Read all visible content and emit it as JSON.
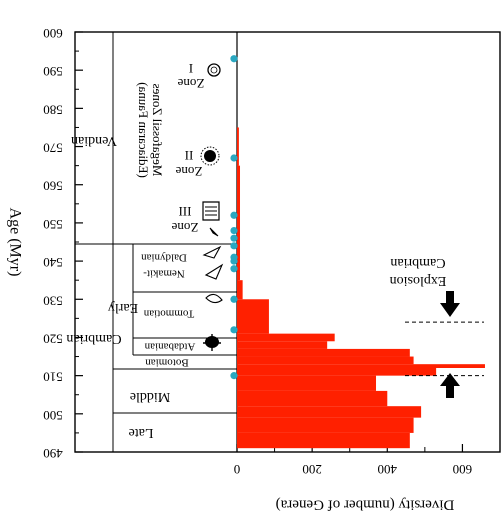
{
  "chart_data": {
    "type": "bar",
    "orientation": "horizontal",
    "mirrored": true,
    "ylabel": "Age (Myr)",
    "xlabel": "Diversity (number of Genera)",
    "ylim": [
      490,
      600
    ],
    "xlim": [
      0,
      700
    ],
    "yticks": [
      "490",
      "500",
      "510",
      "520",
      "530",
      "540",
      "550",
      "560",
      "570",
      "580",
      "590",
      "600"
    ],
    "xticks": [
      "0",
      "200",
      "400",
      "600"
    ],
    "bar_color": "#ff2000",
    "marker_color": "#2aa7c0",
    "bars": [
      {
        "y0": 491,
        "y1": 495,
        "value": 460
      },
      {
        "y0": 495,
        "y1": 499,
        "value": 470
      },
      {
        "y0": 499,
        "y1": 502,
        "value": 490
      },
      {
        "y0": 502,
        "y1": 506,
        "value": 400
      },
      {
        "y0": 506,
        "y1": 510,
        "value": 370
      },
      {
        "y0": 510,
        "y1": 512,
        "value": 530
      },
      {
        "y0": 512,
        "y1": 513,
        "value": 660
      },
      {
        "y0": 513,
        "y1": 515,
        "value": 470
      },
      {
        "y0": 515,
        "y1": 517,
        "value": 460
      },
      {
        "y0": 517,
        "y1": 519,
        "value": 240
      },
      {
        "y0": 519,
        "y1": 521,
        "value": 260
      },
      {
        "y0": 521,
        "y1": 530,
        "value": 85
      },
      {
        "y0": 530,
        "y1": 535,
        "value": 15
      },
      {
        "y0": 535,
        "y1": 565,
        "value": 8
      },
      {
        "y0": 565,
        "y1": 575,
        "value": 5
      }
    ],
    "markers_age": [
      510,
      522,
      530,
      538,
      540,
      541,
      544,
      546,
      548,
      552,
      567,
      593
    ],
    "periods": [
      {
        "name": "Cambrian",
        "y0": 490,
        "y1": 543
      },
      {
        "name": "Vendian",
        "y0": 543,
        "y1": 600
      }
    ],
    "epochs": [
      {
        "name": "Late",
        "y0": 490,
        "y1": 501
      },
      {
        "name": "Middle",
        "y0": 501,
        "y1": 510
      },
      {
        "name": "Early",
        "y0": 510,
        "y1": 543
      }
    ],
    "stages": [
      {
        "name": "Botomian",
        "y0": 510,
        "y1": 514
      },
      {
        "name": "Atdabanian",
        "y0": 514,
        "y1": 518
      },
      {
        "name": "Tommotian",
        "y0": 518,
        "y1": 530
      },
      {
        "name": "Nemakit-",
        "y0": 530,
        "y1": 543
      },
      {
        "name": "Daldynian",
        "y0": 530,
        "y1": 543
      }
    ],
    "zones": {
      "heading": "Megafossil Zones",
      "subheading": "(Ediacaran Fauna)",
      "items": [
        {
          "label": "Zone",
          "numeral": "I",
          "age": 593
        },
        {
          "label": "Zone",
          "numeral": "II",
          "age": 568
        },
        {
          "label": "Zone",
          "numeral": "III",
          "age": 552
        }
      ]
    },
    "annotation": {
      "line1": "Cambrian",
      "line2": "Explosion",
      "line_ages": [
        510,
        524
      ]
    }
  }
}
